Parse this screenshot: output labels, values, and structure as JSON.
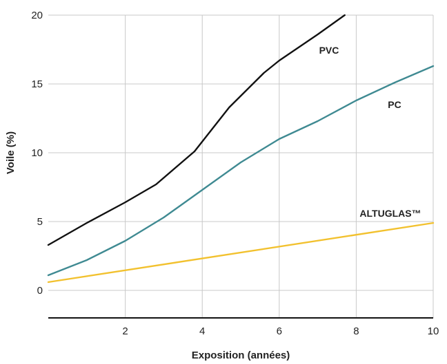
{
  "chart_data": {
    "type": "line",
    "title": "",
    "xlabel": "Exposition (années)",
    "ylabel": "Voile (%)",
    "xlim": [
      0,
      10
    ],
    "ylim": [
      -2,
      20
    ],
    "x_ticks": [
      2,
      4,
      6,
      8,
      10
    ],
    "y_ticks": [
      0,
      5,
      10,
      15,
      20
    ],
    "grid": "vertical-and-horizontal",
    "series": [
      {
        "name": "PVC",
        "color": "#111111",
        "x": [
          0,
          1,
          2,
          2.8,
          3.8,
          4.7,
          5.6,
          6,
          7,
          7.7
        ],
        "y": [
          3.3,
          4.9,
          6.4,
          7.7,
          10.1,
          13.3,
          15.8,
          16.7,
          18.6,
          20
        ]
      },
      {
        "name": "PC",
        "color": "#3f8a92",
        "x": [
          0,
          1,
          2,
          3,
          4,
          5,
          6,
          7,
          8,
          9,
          10
        ],
        "y": [
          1.1,
          2.2,
          3.6,
          5.3,
          7.3,
          9.3,
          11.0,
          12.3,
          13.8,
          15.1,
          16.3
        ]
      },
      {
        "name": "ALTUGLAS™",
        "color": "#f2c12e",
        "x": [
          0,
          10
        ],
        "y": [
          0.6,
          4.9
        ]
      }
    ]
  }
}
